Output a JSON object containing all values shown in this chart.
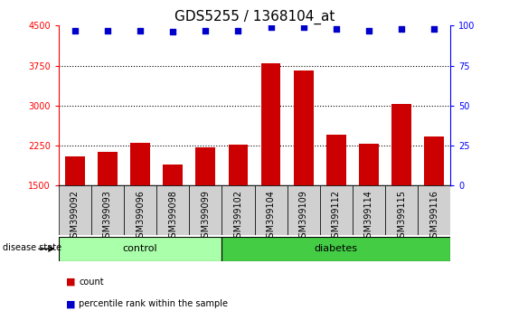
{
  "title": "GDS5255 / 1368104_at",
  "samples": [
    "GSM399092",
    "GSM399093",
    "GSM399096",
    "GSM399098",
    "GSM399099",
    "GSM399102",
    "GSM399104",
    "GSM399109",
    "GSM399112",
    "GSM399114",
    "GSM399115",
    "GSM399116"
  ],
  "counts": [
    2050,
    2130,
    2310,
    1890,
    2220,
    2270,
    3790,
    3660,
    2450,
    2280,
    3030,
    2420
  ],
  "percentile_ranks": [
    97,
    97,
    97,
    96,
    97,
    97,
    99,
    99,
    98,
    97,
    98,
    98
  ],
  "n_control": 5,
  "n_diabetes": 7,
  "ylim_left": [
    1500,
    4500
  ],
  "ylim_right": [
    0,
    100
  ],
  "yticks_left": [
    1500,
    2250,
    3000,
    3750,
    4500
  ],
  "yticks_right": [
    0,
    25,
    50,
    75,
    100
  ],
  "bar_color": "#cc0000",
  "dot_color": "#0000cc",
  "control_color": "#aaffaa",
  "diabetes_color": "#44cc44",
  "legend_count_label": "count",
  "legend_pct_label": "percentile rank within the sample",
  "disease_state_label": "disease state",
  "control_label": "control",
  "diabetes_label": "diabetes",
  "title_fontsize": 11,
  "tick_fontsize": 7,
  "label_fontsize": 8
}
